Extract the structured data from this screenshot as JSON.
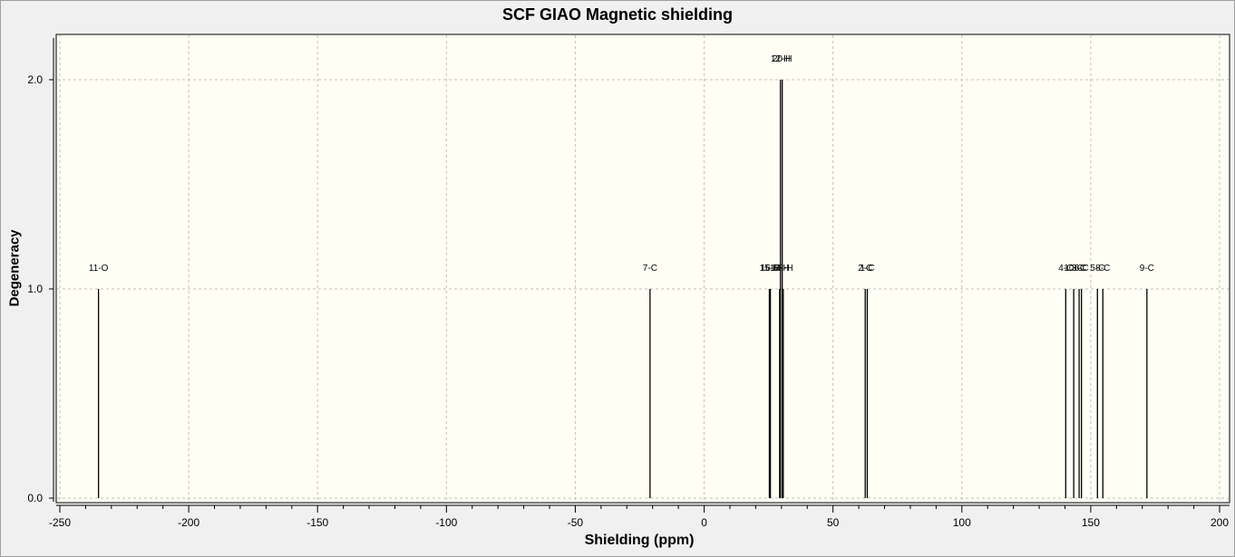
{
  "window": {
    "title": "SCF GIAO Magnetic shielding"
  },
  "colors": {
    "plot_background": "#fffff5",
    "frame": "#000000",
    "grid": "#c0c0c0",
    "stick": "#000000",
    "window_background": "#f0f0f0"
  },
  "chart_data": {
    "type": "bar",
    "title": "SCF GIAO Magnetic shielding",
    "xlabel": "Shielding (ppm)",
    "ylabel": "Degeneracy",
    "xlim": [
      -250,
      200
    ],
    "ylim": [
      0,
      2.0
    ],
    "x_ticks": [
      -250,
      -200,
      -150,
      -100,
      -50,
      0,
      50,
      100,
      150,
      200
    ],
    "y_ticks": [
      0.0,
      1.0,
      2.0
    ],
    "y_tick_labels": [
      "0.0",
      "1.0",
      "2.0"
    ],
    "grid": true,
    "legend": "none",
    "peaks": [
      {
        "x": -235,
        "degeneracy": 1,
        "label": "11-O"
      },
      {
        "x": -21,
        "degeneracy": 1,
        "label": "7-C"
      },
      {
        "x": 25.3,
        "degeneracy": 1,
        "label": "15-H"
      },
      {
        "x": 25.7,
        "degeneracy": 1,
        "label": "16-H"
      },
      {
        "x": 29.3,
        "degeneracy": 1,
        "label": "17-H"
      },
      {
        "x": 29.6,
        "degeneracy": 2,
        "label": "12-H"
      },
      {
        "x": 30.3,
        "degeneracy": 2,
        "label": "20-H"
      },
      {
        "x": 30.7,
        "degeneracy": 1,
        "label": "18-H"
      },
      {
        "x": 62.5,
        "degeneracy": 1,
        "label": "2-C"
      },
      {
        "x": 63.3,
        "degeneracy": 1,
        "label": "1-C"
      },
      {
        "x": 140.3,
        "degeneracy": 1,
        "label": "4-C"
      },
      {
        "x": 143.4,
        "degeneracy": 1,
        "label": "10-C"
      },
      {
        "x": 145.5,
        "degeneracy": 1,
        "label": "3-C"
      },
      {
        "x": 146.4,
        "degeneracy": 1,
        "label": "6-C"
      },
      {
        "x": 152.6,
        "degeneracy": 1,
        "label": "5-C"
      },
      {
        "x": 154.7,
        "degeneracy": 1,
        "label": "8-C"
      },
      {
        "x": 171.8,
        "degeneracy": 1,
        "label": "9-C"
      }
    ]
  }
}
